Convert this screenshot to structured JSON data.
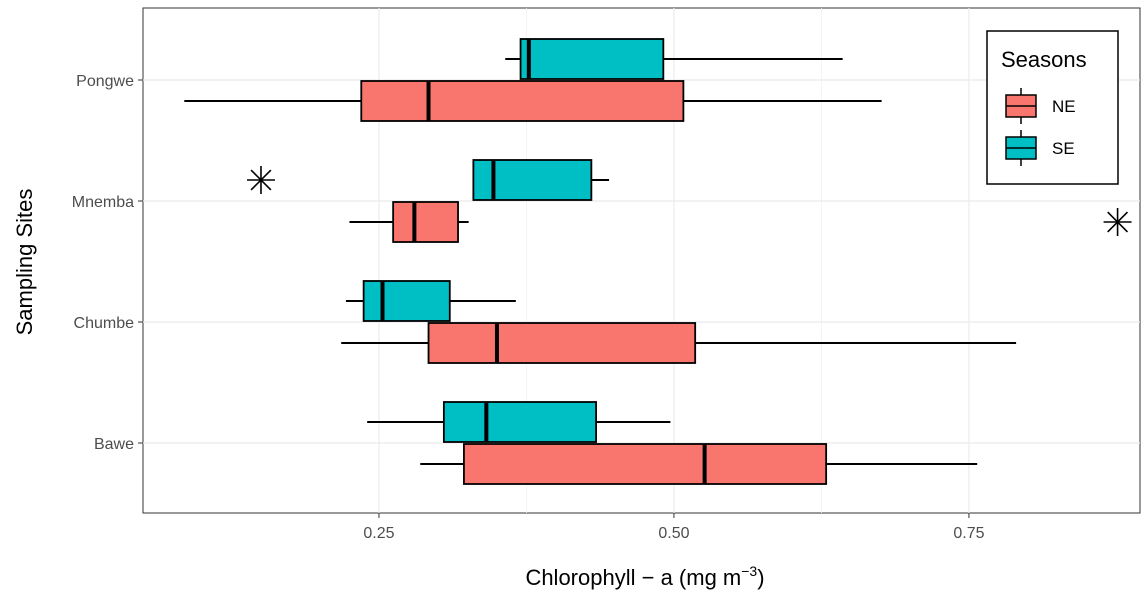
{
  "chart_data": {
    "type": "boxplot",
    "orientation": "horizontal",
    "xlabel_main": "Chlorophyll",
    "xlabel_sep": " − a ",
    "xlabel_unit": "(mg m",
    "xlabel_sup": "−3",
    "xlabel_close": ")",
    "ylabel": "Sampling Sites",
    "xlim": [
      0.05,
      0.895
    ],
    "xticks": [
      0.25,
      0.5,
      0.75
    ],
    "xtick_labels": [
      "0.25",
      "0.50",
      "0.75"
    ],
    "categories": [
      "Pongwe",
      "Mnemba",
      "Chumbe",
      "Bawe"
    ],
    "grid": true,
    "legend": {
      "title": "Seasons",
      "position": "top-right",
      "items": [
        {
          "name": "NE",
          "color": "#f8766d"
        },
        {
          "name": "SE",
          "color": "#00bfc4"
        }
      ]
    },
    "series": [
      {
        "name": "NE",
        "color": "#f8766d",
        "boxes": [
          {
            "category": "Pongwe",
            "min": 0.085,
            "q1": 0.235,
            "median": 0.292,
            "q3": 0.508,
            "max": 0.676,
            "outliers": []
          },
          {
            "category": "Mnemba",
            "min": 0.225,
            "q1": 0.262,
            "median": 0.28,
            "q3": 0.317,
            "max": 0.326,
            "outliers": [
              0.876
            ]
          },
          {
            "category": "Chumbe",
            "min": 0.218,
            "q1": 0.292,
            "median": 0.35,
            "q3": 0.518,
            "max": 0.79,
            "outliers": []
          },
          {
            "category": "Bawe",
            "min": 0.285,
            "q1": 0.322,
            "median": 0.526,
            "q3": 0.629,
            "max": 0.757,
            "outliers": []
          }
        ]
      },
      {
        "name": "SE",
        "color": "#00bfc4",
        "boxes": [
          {
            "category": "Pongwe",
            "min": 0.357,
            "q1": 0.37,
            "median": 0.377,
            "q3": 0.491,
            "max": 0.643,
            "outliers": []
          },
          {
            "category": "Mnemba",
            "min": 0.33,
            "q1": 0.33,
            "median": 0.347,
            "q3": 0.43,
            "max": 0.445,
            "outliers": [
              0.15
            ]
          },
          {
            "category": "Chumbe",
            "min": 0.222,
            "q1": 0.237,
            "median": 0.253,
            "q3": 0.31,
            "max": 0.366,
            "outliers": []
          },
          {
            "category": "Bawe",
            "min": 0.24,
            "q1": 0.305,
            "median": 0.341,
            "q3": 0.434,
            "max": 0.497,
            "outliers": []
          }
        ]
      }
    ]
  }
}
